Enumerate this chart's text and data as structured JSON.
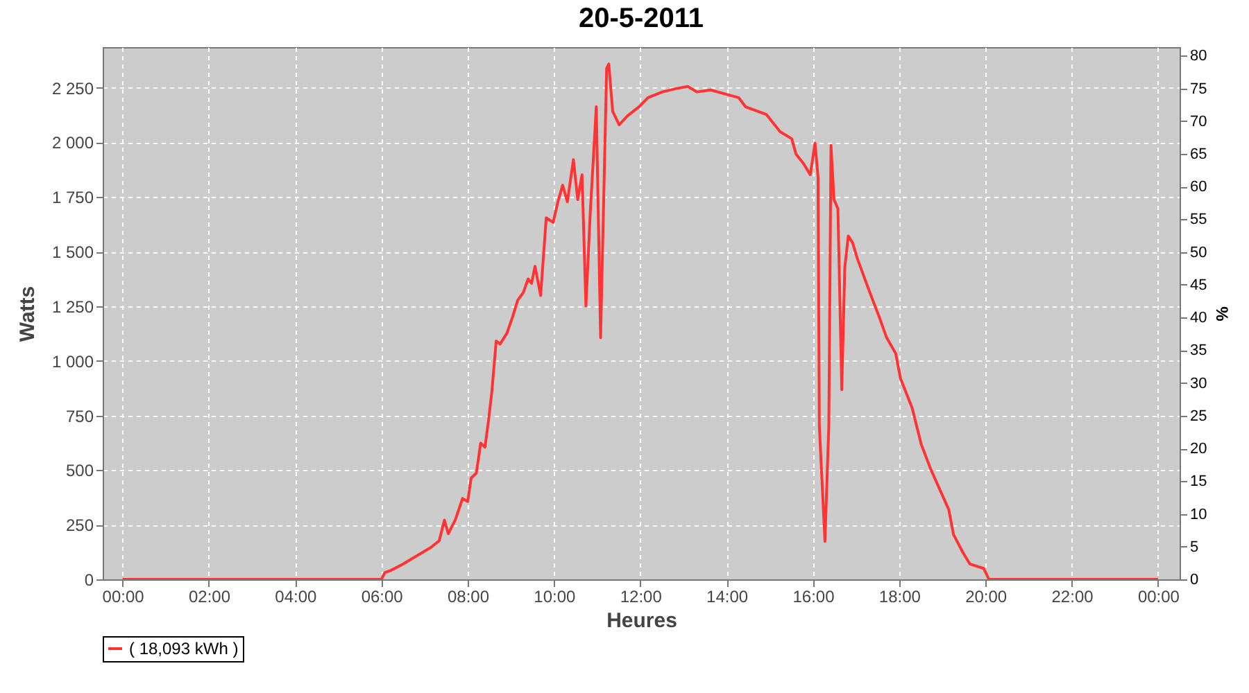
{
  "chart_data": {
    "type": "line",
    "title": "20-5-2011",
    "xlabel": "Heures",
    "ylabel": "Watts",
    "y2label": "%",
    "xlim": [
      -0.46,
      24.5
    ],
    "ylim": [
      0,
      2436
    ],
    "y2lim": [
      0,
      81.3
    ],
    "xticks": [
      {
        "value": 0,
        "label": "00:00"
      },
      {
        "value": 2,
        "label": "02:00"
      },
      {
        "value": 4,
        "label": "04:00"
      },
      {
        "value": 6,
        "label": "06:00"
      },
      {
        "value": 8,
        "label": "08:00"
      },
      {
        "value": 10,
        "label": "10:00"
      },
      {
        "value": 12,
        "label": "12:00"
      },
      {
        "value": 14,
        "label": "14:00"
      },
      {
        "value": 16,
        "label": "16:00"
      },
      {
        "value": 18,
        "label": "18:00"
      },
      {
        "value": 20,
        "label": "20:00"
      },
      {
        "value": 22,
        "label": "22:00"
      },
      {
        "value": 24,
        "label": "00:00"
      }
    ],
    "yticks": [
      0,
      250,
      500,
      750,
      {
        "value": 1000,
        "label": "1 000"
      },
      {
        "value": 1250,
        "label": "1 250"
      },
      {
        "value": 1500,
        "label": "1 500"
      },
      {
        "value": 1750,
        "label": "1 750"
      },
      {
        "value": 2000,
        "label": "2 000"
      },
      {
        "value": 2250,
        "label": "2 250"
      }
    ],
    "y2ticks": [
      0,
      5,
      10,
      15,
      20,
      25,
      30,
      35,
      40,
      45,
      50,
      55,
      60,
      65,
      70,
      75,
      80
    ],
    "grid": true,
    "legend": "bottom",
    "marker": "none",
    "line_style": "solid",
    "x": [
      0,
      6.0,
      6.08,
      6.21,
      6.5,
      6.82,
      7.14,
      7.34,
      7.46,
      7.55,
      7.71,
      7.88,
      8.0,
      8.08,
      8.2,
      8.3,
      8.4,
      8.48,
      8.56,
      8.66,
      8.75,
      8.91,
      9.04,
      9.16,
      9.29,
      9.4,
      9.48,
      9.56,
      9.69,
      9.82,
      9.98,
      10.09,
      10.2,
      10.31,
      10.45,
      10.55,
      10.65,
      10.74,
      10.84,
      10.98,
      11.08,
      11.22,
      11.27,
      11.36,
      11.51,
      11.7,
      11.97,
      12.18,
      12.51,
      12.83,
      13.1,
      13.31,
      13.63,
      14.01,
      14.28,
      14.44,
      14.92,
      15.24,
      15.51,
      15.61,
      15.78,
      15.94,
      16.05,
      16.12,
      16.15,
      16.28,
      16.37,
      16.42,
      16.49,
      16.58,
      16.67,
      16.74,
      16.82,
      16.92,
      17.03,
      17.28,
      17.54,
      17.71,
      17.92,
      18.03,
      18.3,
      18.51,
      18.73,
      18.94,
      19.15,
      19.26,
      19.48,
      19.64,
      19.96,
      20.08,
      24.0
    ],
    "series": [
      {
        "name": "( 18,093 kWh )",
        "color": "#ff3333",
        "values": [
          0,
          0,
          31,
          40,
          70,
          108,
          145,
          177,
          271,
          209,
          271,
          370,
          356,
          464,
          486,
          623,
          605,
          723,
          860,
          1091,
          1077,
          1127,
          1201,
          1278,
          1313,
          1375,
          1355,
          1433,
          1299,
          1655,
          1634,
          1728,
          1804,
          1728,
          1921,
          1738,
          1852,
          1251,
          1676,
          2163,
          1106,
          2339,
          2359,
          2142,
          2080,
          2121,
          2163,
          2205,
          2231,
          2246,
          2256,
          2231,
          2240,
          2219,
          2205,
          2163,
          2128,
          2049,
          2017,
          1946,
          1904,
          1852,
          1997,
          1842,
          702,
          174,
          704,
          1986,
          1738,
          1697,
          868,
          1427,
          1572,
          1541,
          1469,
          1334,
          1200,
          1106,
          1034,
          920,
          785,
          619,
          505,
          412,
          319,
          205,
          122,
          70,
          50,
          0,
          0
        ]
      }
    ]
  }
}
